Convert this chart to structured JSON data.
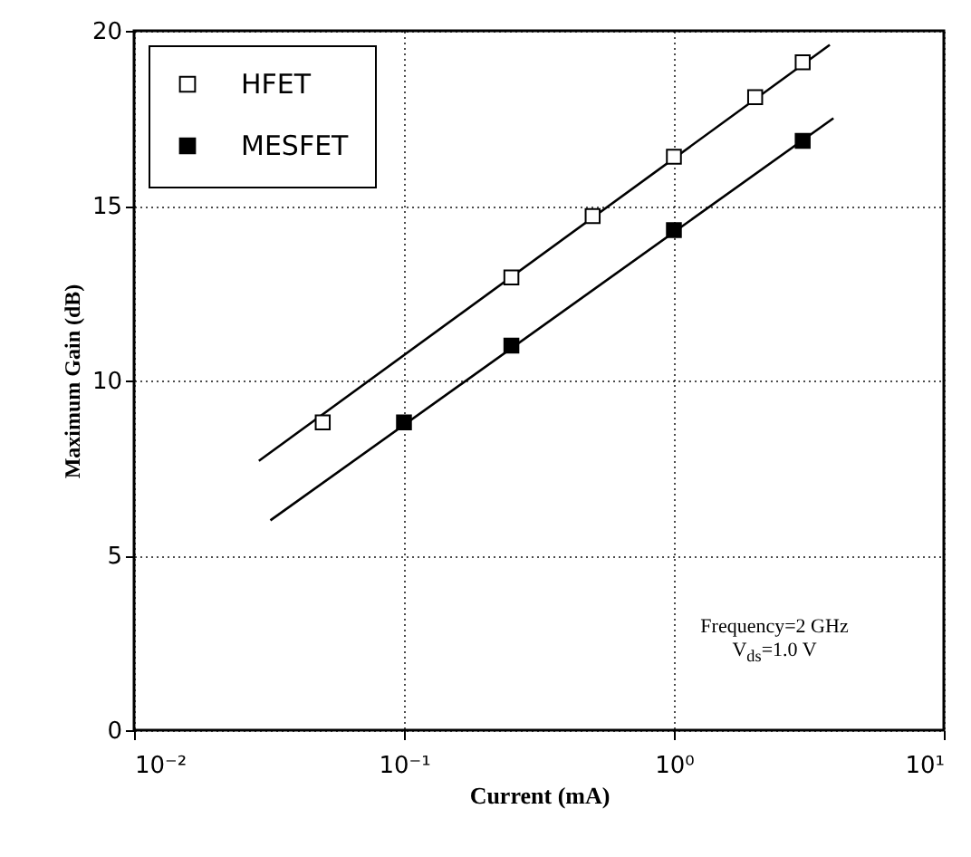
{
  "chart_data": {
    "type": "scatter",
    "xlabel": "Current (mA)",
    "ylabel": "Maximum Gain (dB)",
    "log": "x",
    "grid": true,
    "legend": "top left",
    "xlim": [
      0.01,
      10
    ],
    "xticks": [
      {
        "value": 0.01,
        "label": "10⁻²"
      },
      {
        "value": 0.1,
        "label": "10⁻¹"
      },
      {
        "value": 1,
        "label": "10⁰"
      },
      {
        "value": 10,
        "label": "10¹"
      }
    ],
    "ylim": [
      0,
      20
    ],
    "yticks": [
      0,
      5,
      10,
      15,
      20
    ],
    "annotations": [
      "Frequency=2 GHz",
      "V$_{ds}$=1.0 V"
    ],
    "series": [
      {
        "name": "HFET",
        "marker": "square",
        "color": "#ffffff",
        "x": [
          0.05,
          0.25,
          0.5,
          1,
          2,
          3
        ],
        "values": [
          8.8,
          12.95,
          14.7,
          16.4,
          18.1,
          19.1
        ]
      },
      {
        "name": "MESFET",
        "marker": "square",
        "color": "#000000",
        "x": [
          0.1,
          0.25,
          1,
          3
        ],
        "values": [
          8.8,
          11.0,
          14.3,
          16.85
        ]
      },
      {
        "type": "line",
        "marker": "none",
        "color": "#000000",
        "x": [
          0.029,
          3.78
        ],
        "values": [
          7.7,
          19.6
        ]
      },
      {
        "type": "line",
        "marker": "none",
        "color": "#000000",
        "x": [
          0.032,
          3.9
        ],
        "values": [
          6.0,
          17.5
        ]
      }
    ]
  }
}
